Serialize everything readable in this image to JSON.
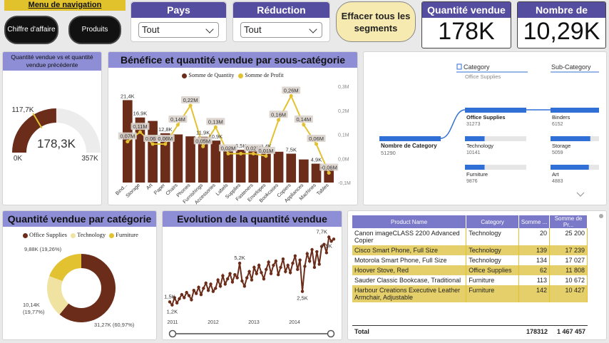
{
  "nav": {
    "title": "Menu de navigation",
    "btn1": "Chiffre d'affaire",
    "btn2": "Produits"
  },
  "slicers": {
    "pays": {
      "label": "Pays",
      "value": "Tout"
    },
    "reduction": {
      "label": "Réduction appliquée",
      "value": "Tout"
    },
    "clear": "Effacer tous les segments"
  },
  "kpis": {
    "qty": {
      "label": "Quantité vendue",
      "value": "178K"
    },
    "products": {
      "label": "Nombre de produits",
      "value": "10,29K"
    }
  },
  "gauge": {
    "title": "Quantité vendue vs et quantité vendue précédente",
    "value_label": "178,3K",
    "min": "0K",
    "max": "357K",
    "target": "117,7K",
    "value": 178.3,
    "max_value": 357,
    "target_value": 117.7
  },
  "combo": {
    "title": "Bénéfice et quantité vendue par sous-catégorie",
    "legend_qty": "Somme de Quantity",
    "legend_profit": "Somme de Profit",
    "right_ticks": [
      "0,3M",
      "0,2M",
      "0,1M",
      "0,0M",
      "-0,1M"
    ],
    "categories": [
      "Bind...",
      "Storage",
      "Art",
      "Paper",
      "Chairs",
      "Phones",
      "Furnishings",
      "Accessories",
      "Labels",
      "Supplies",
      "Fasteners",
      "Envelopes",
      "Bookcases",
      "Copiers",
      "Appliances",
      "Machines",
      "Tables"
    ],
    "qty": [
      21.4,
      16.9,
      16.0,
      12.8,
      12.5,
      12.0,
      11.9,
      10.9,
      9.0,
      8.5,
      8.3,
      8.4,
      8.0,
      7.5,
      6.0,
      4.9,
      3.5
    ],
    "profit": [
      0.07,
      0.11,
      0.06,
      0.06,
      0.14,
      0.22,
      0.05,
      0.13,
      0.02,
      0.02,
      0.02,
      0.01,
      0.16,
      0.26,
      0.14,
      0.06,
      -0.06
    ],
    "qty_labels": [
      {
        "i": 0,
        "text": "21,4K"
      },
      {
        "i": 1,
        "text": "16,9K"
      },
      {
        "i": 3,
        "text": "12,8K"
      },
      {
        "i": 6,
        "text": "11,9K"
      },
      {
        "i": 7,
        "text": "10,9K"
      },
      {
        "i": 9,
        "text": "8,5K"
      },
      {
        "i": 11,
        "text": "8,4K"
      },
      {
        "i": 13,
        "text": "7,5K"
      },
      {
        "i": 15,
        "text": "4,9K"
      }
    ],
    "profit_labels": [
      {
        "i": 0,
        "text": "0,07M"
      },
      {
        "i": 1,
        "text": "0,11M"
      },
      {
        "i": 2,
        "text": "0,06M"
      },
      {
        "i": 3,
        "text": "0,06M"
      },
      {
        "i": 4,
        "text": "0,14M"
      },
      {
        "i": 5,
        "text": "0,22M"
      },
      {
        "i": 6,
        "text": "0,05M"
      },
      {
        "i": 7,
        "text": "0,13M"
      },
      {
        "i": 8,
        "text": "0,02M"
      },
      {
        "i": 10,
        "text": "0,02M"
      },
      {
        "i": 11,
        "text": "0,01M"
      },
      {
        "i": 12,
        "text": "0,16M"
      },
      {
        "i": 13,
        "text": "0,26M"
      },
      {
        "i": 14,
        "text": "0,14M"
      },
      {
        "i": 15,
        "text": "0,06M"
      },
      {
        "i": 16,
        "text": "-0,06M"
      }
    ]
  },
  "decomp": {
    "col1": "Category",
    "col1_sub": "Office Supplies",
    "col2": "Sub-Category",
    "root_label": "Nombre de Category",
    "root_value": "51290",
    "categories": [
      {
        "name": "Office Supplies",
        "value": "31273",
        "frac": 1.0
      },
      {
        "name": "Technology",
        "value": "10141",
        "frac": 0.32
      },
      {
        "name": "Furniture",
        "value": "9876",
        "frac": 0.32
      }
    ],
    "subs": [
      {
        "name": "Binders",
        "value": "6152",
        "frac": 1.0
      },
      {
        "name": "Storage",
        "value": "5059",
        "frac": 0.82
      },
      {
        "name": "Art",
        "value": "4883",
        "frac": 0.79
      }
    ]
  },
  "donut": {
    "title": "Quantité vendue par catégorie",
    "legend": [
      "Office Supplies",
      "Technology",
      "Furniture"
    ],
    "colors": [
      "#6b2d1a",
      "#f0e2a0",
      "#e3c232"
    ],
    "values": [
      31.27,
      10.14,
      9.88
    ],
    "labels": [
      "31,27K (60,97%)",
      "10,14K (19,77%)",
      "9,88K (19,26%)"
    ]
  },
  "line": {
    "title": "Evolution de la quantité vendue",
    "years": [
      "2011",
      "2012",
      "2013",
      "2014"
    ],
    "values": [
      1.5,
      1.2,
      1.9,
      1.4,
      1.8,
      2.2,
      1.9,
      2.4,
      2.1,
      1.7,
      2.6,
      2.3,
      2.9,
      2.2,
      2.8,
      3.3,
      2.6,
      3.2,
      2.5,
      2.8,
      3.6,
      3.0,
      4.0,
      3.2,
      3.7,
      4.2,
      3.4,
      4.1,
      3.8,
      5.2,
      3.5,
      3.0,
      3.8,
      4.4,
      3.6,
      4.8,
      4.2,
      5.0,
      4.3,
      3.7,
      4.6,
      5.3,
      4.2,
      5.0,
      5.4,
      4.1,
      4.8,
      5.6,
      4.4,
      5.0,
      4.3,
      5.2,
      5.9,
      4.6,
      5.5,
      2.5,
      4.9,
      6.1,
      5.4,
      6.5,
      4.8,
      6.3,
      5.1,
      6.8,
      7.0,
      6.2,
      7.7,
      7.3,
      7.5
    ],
    "labels": [
      {
        "i": 0,
        "text": "1,5K"
      },
      {
        "i": 1,
        "text": "1,2K"
      },
      {
        "i": 29,
        "text": "5,2K"
      },
      {
        "i": 55,
        "text": "2,5K"
      },
      {
        "i": 66,
        "text": "7,7K"
      },
      {
        "i": 68,
        "text": "7,5K"
      }
    ]
  },
  "table": {
    "headers": [
      "Product Name",
      "Category",
      "Somme ...",
      "Somme de Pr..."
    ],
    "rows": [
      [
        "Canon imageCLASS 2200 Advanced Copier",
        "Technology",
        "20",
        "25 200"
      ],
      [
        "Cisco Smart Phone, Full Size",
        "Technology",
        "139",
        "17 239"
      ],
      [
        "Motorola Smart Phone, Full Size",
        "Technology",
        "134",
        "17 027"
      ],
      [
        "Hoover Stove, Red",
        "Office Supplies",
        "62",
        "11 808"
      ],
      [
        "Sauder Classic Bookcase, Traditional",
        "Furniture",
        "113",
        "10 672"
      ],
      [
        "Harbour Creations Executive Leather Armchair, Adjustable",
        "Furniture",
        "142",
        "10 427"
      ]
    ],
    "total": [
      "Total",
      "",
      "178312",
      "1 467 457"
    ]
  }
}
